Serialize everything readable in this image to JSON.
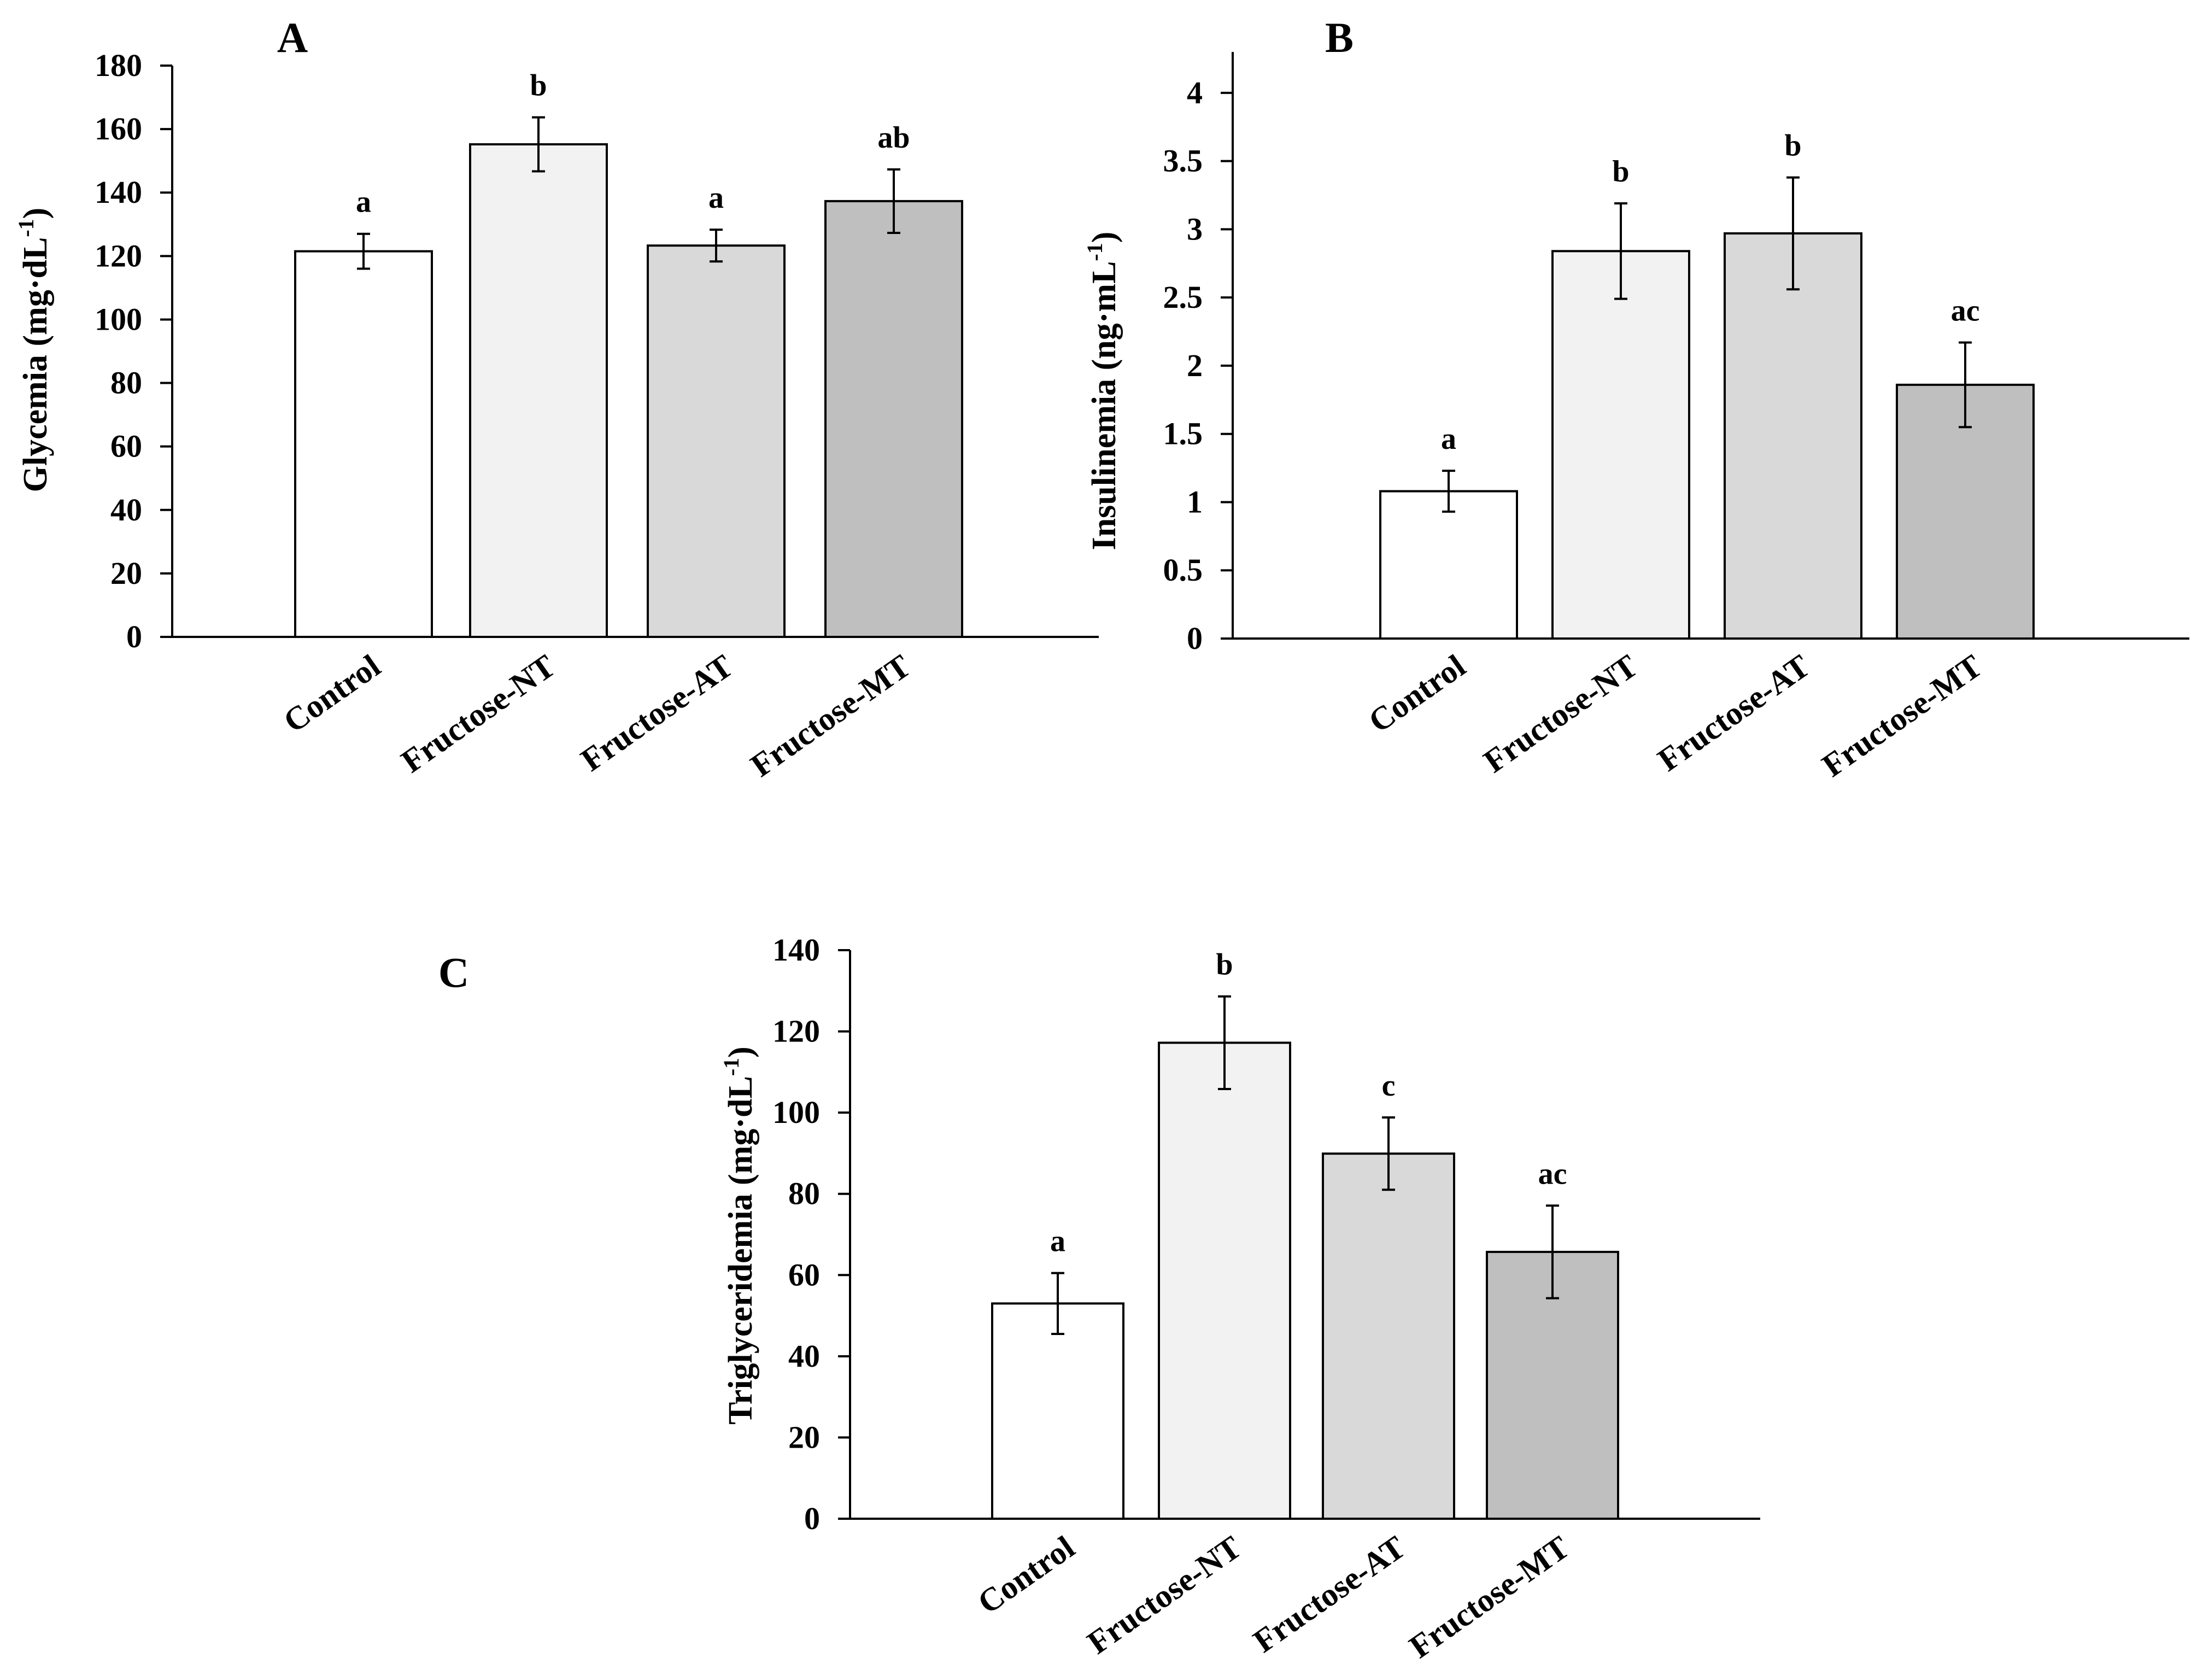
{
  "figure": {
    "background": "#ffffff"
  },
  "chart_data": [
    {
      "panel": "A",
      "type": "bar",
      "title": "",
      "xlabel": "",
      "ylabel": "Glycemia (mg·dL",
      "ylabel_sup": "-1",
      "ylabel_close": ")",
      "ylim": [
        0,
        180
      ],
      "ticks": [
        0,
        20,
        40,
        60,
        80,
        100,
        120,
        140,
        160,
        180
      ],
      "tick_labels": [
        "0",
        "20",
        "40",
        "60",
        "80",
        "100",
        "120",
        "140",
        "160",
        "180"
      ],
      "categories": [
        "Control",
        "Fructose-NT",
        "Fructose-AT",
        "Fructose-MT"
      ],
      "values": [
        121.5,
        155.2,
        123.3,
        137.3
      ],
      "errors": [
        5.5,
        8.5,
        5.0,
        10.0
      ],
      "letters": [
        "a",
        "b",
        "a",
        "ab"
      ],
      "colors": [
        "#ffffff",
        "#f2f2f2",
        "#d9d9d9",
        "#bfbfbf"
      ]
    },
    {
      "panel": "B",
      "type": "bar",
      "title": "",
      "xlabel": "",
      "ylabel": "Insulinemia (ng·mL",
      "ylabel_sup": "-1",
      "ylabel_close": ")",
      "ylim": [
        0,
        4.3
      ],
      "ticks": [
        0,
        0.5,
        1,
        1.5,
        2,
        2.5,
        3,
        3.5,
        4
      ],
      "tick_labels": [
        "0",
        "0.5",
        "1",
        "1.5",
        "2",
        "2.5",
        "3",
        "3.5",
        "4"
      ],
      "categories": [
        "Control",
        "Fructose-NT",
        "Fructose-AT",
        "Fructose-MT"
      ],
      "values": [
        1.08,
        2.84,
        2.97,
        1.86
      ],
      "errors": [
        0.15,
        0.35,
        0.41,
        0.31
      ],
      "letters": [
        "a",
        "b",
        "b",
        "ac"
      ],
      "colors": [
        "#ffffff",
        "#f2f2f2",
        "#d9d9d9",
        "#bfbfbf"
      ]
    },
    {
      "panel": "C",
      "type": "bar",
      "title": "",
      "xlabel": "",
      "ylabel": "Triglyceridemia  (mg·dL",
      "ylabel_sup": "-1",
      "ylabel_close": ")",
      "ylim": [
        0,
        140
      ],
      "ticks": [
        0,
        20,
        40,
        60,
        80,
        100,
        120,
        140
      ],
      "tick_labels": [
        "0",
        "20",
        "40",
        "60",
        "80",
        "100",
        "120",
        "140"
      ],
      "categories": [
        "Control",
        "Fructose-NT",
        "Fructose-AT",
        "Fructose-MT"
      ],
      "values": [
        53,
        117.2,
        89.9,
        65.7
      ],
      "errors": [
        7.5,
        11.4,
        8.9,
        11.4
      ],
      "letters": [
        "a",
        "b",
        "c",
        "ac"
      ],
      "colors": [
        "#ffffff",
        "#f2f2f2",
        "#d9d9d9",
        "#bfbfbf"
      ]
    }
  ]
}
